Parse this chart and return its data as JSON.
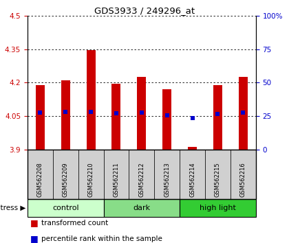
{
  "title": "GDS3933 / 249296_at",
  "samples": [
    "GSM562208",
    "GSM562209",
    "GSM562210",
    "GSM562211",
    "GSM562212",
    "GSM562213",
    "GSM562214",
    "GSM562215",
    "GSM562216"
  ],
  "bar_bottoms": [
    3.9,
    3.9,
    3.9,
    3.9,
    3.9,
    3.9,
    3.9,
    3.9,
    3.9
  ],
  "bar_tops": [
    4.19,
    4.21,
    4.345,
    4.195,
    4.225,
    4.17,
    3.91,
    4.19,
    4.225
  ],
  "blue_dots": [
    4.065,
    4.07,
    4.07,
    4.063,
    4.067,
    4.053,
    4.04,
    4.06,
    4.067
  ],
  "ylim": [
    3.9,
    4.5
  ],
  "yticks_left": [
    3.9,
    4.05,
    4.2,
    4.35,
    4.5
  ],
  "yticks_right_vals": [
    0,
    25,
    50,
    75,
    100
  ],
  "yticks_right_pos": [
    3.9,
    4.05,
    4.2,
    4.35,
    4.5
  ],
  "bar_color": "#cc0000",
  "dot_color": "#0000cc",
  "groups": [
    {
      "label": "control",
      "start": 0,
      "end": 3,
      "color": "#ccffcc"
    },
    {
      "label": "dark",
      "start": 3,
      "end": 6,
      "color": "#88dd88"
    },
    {
      "label": "high light",
      "start": 6,
      "end": 9,
      "color": "#33cc33"
    }
  ],
  "stress_label": "stress",
  "legend_tc": "transformed count",
  "legend_pr": "percentile rank within the sample",
  "tick_label_color_left": "#cc0000",
  "tick_label_color_right": "#0000cc",
  "sample_bg": "#d0d0d0",
  "bar_width": 0.35
}
